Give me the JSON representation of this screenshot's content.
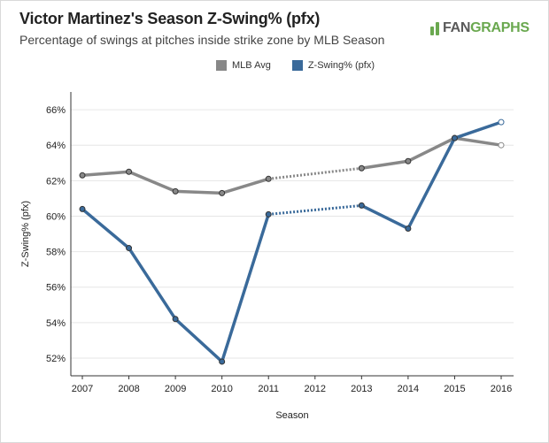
{
  "title": "Victor Martinez's Season Z-Swing% (pfx)",
  "subtitle": "Percentage of swings at pitches inside strike zone by MLB Season",
  "brand": {
    "part1": "FAN",
    "part2": "GRAPHS",
    "icon": "fangraphs-logo-icon"
  },
  "colors": {
    "mlb": "#888888",
    "player": "#3a6a9a",
    "accent": "#6aa84f"
  },
  "legend": [
    {
      "label": "MLB Avg",
      "color": "#888888"
    },
    {
      "label": "Z-Swing% (pfx)",
      "color": "#3a6a9a"
    }
  ],
  "chart_data": {
    "type": "line",
    "title": "Victor Martinez's Season Z-Swing% (pfx)",
    "xlabel": "Season",
    "ylabel": "Z-Swing% (pfx)",
    "categories": [
      "2007",
      "2008",
      "2009",
      "2010",
      "2011",
      "2012",
      "2013",
      "2014",
      "2015",
      "2016"
    ],
    "yticks": [
      "52%",
      "54%",
      "56%",
      "58%",
      "60%",
      "62%",
      "64%",
      "66%"
    ],
    "ylim": [
      51,
      67
    ],
    "series": [
      {
        "name": "MLB Avg",
        "color": "#888888",
        "values": [
          62.3,
          62.5,
          61.4,
          61.3,
          62.1,
          null,
          62.7,
          63.1,
          64.4,
          64.0
        ]
      },
      {
        "name": "Z-Swing% (pfx)",
        "color": "#3a6a9a",
        "values": [
          60.4,
          58.2,
          54.2,
          51.8,
          60.1,
          null,
          60.6,
          59.3,
          64.4,
          65.3
        ]
      }
    ]
  }
}
